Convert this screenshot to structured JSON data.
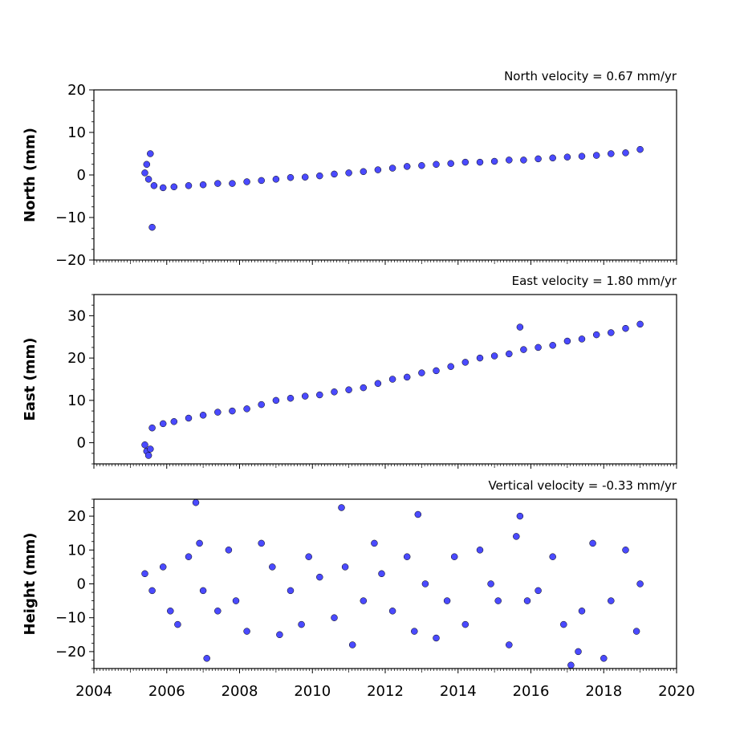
{
  "chart_data": [
    {
      "type": "scatter",
      "ylabel": "North (mm)",
      "annotation": "North velocity = 0.67 mm/yr",
      "xlim": [
        2004,
        2020
      ],
      "ylim": [
        -20,
        20
      ],
      "yticks": [
        -20,
        -10,
        0,
        10,
        20
      ],
      "ytick_labels": [
        "−20",
        "−10",
        "0",
        "10",
        "20"
      ],
      "xtick_labels_shown": false,
      "series": [
        {
          "color": "#4a4aff",
          "x": [
            2005.4,
            2005.45,
            2005.5,
            2005.55,
            2005.6,
            2005.65,
            2005.9,
            2006.2,
            2006.6,
            2007.0,
            2007.4,
            2007.8,
            2008.2,
            2008.6,
            2009.0,
            2009.4,
            2009.8,
            2010.2,
            2010.6,
            2011.0,
            2011.4,
            2011.8,
            2012.2,
            2012.6,
            2013.0,
            2013.4,
            2013.8,
            2014.2,
            2014.6,
            2015.0,
            2015.4,
            2015.8,
            2016.2,
            2016.6,
            2017.0,
            2017.4,
            2017.8,
            2018.2,
            2018.6,
            2019.0
          ],
          "y": [
            0.5,
            2.5,
            -1,
            5,
            -12.3,
            -2.5,
            -3,
            -2.8,
            -2.5,
            -2.3,
            -2,
            -2,
            -1.6,
            -1.3,
            -1,
            -0.6,
            -0.5,
            -0.2,
            0.2,
            0.5,
            0.8,
            1.2,
            1.6,
            2,
            2.2,
            2.5,
            2.7,
            3,
            3,
            3.2,
            3.5,
            3.5,
            3.8,
            4,
            4.2,
            4.4,
            4.6,
            5,
            5.2,
            6
          ]
        }
      ]
    },
    {
      "type": "scatter",
      "ylabel": "East (mm)",
      "annotation": "East velocity = 1.80 mm/yr",
      "xlim": [
        2004,
        2020
      ],
      "ylim": [
        -5,
        35
      ],
      "yticks": [
        0,
        10,
        20,
        30
      ],
      "ytick_labels": [
        "0",
        "10",
        "20",
        "30"
      ],
      "xtick_labels_shown": false,
      "series": [
        {
          "color": "#4a4aff",
          "x": [
            2005.4,
            2005.45,
            2005.5,
            2005.55,
            2005.6,
            2005.9,
            2006.2,
            2006.6,
            2007.0,
            2007.4,
            2007.8,
            2008.2,
            2008.6,
            2009.0,
            2009.4,
            2009.8,
            2010.2,
            2010.6,
            2011.0,
            2011.4,
            2011.8,
            2012.2,
            2012.6,
            2013.0,
            2013.4,
            2013.8,
            2014.2,
            2014.6,
            2015.0,
            2015.4,
            2015.7,
            2015.8,
            2016.2,
            2016.6,
            2017.0,
            2017.4,
            2017.8,
            2018.2,
            2018.6,
            2019.0
          ],
          "y": [
            -0.5,
            -2,
            -3,
            -1.5,
            3.5,
            4.5,
            5,
            5.8,
            6.5,
            7.2,
            7.5,
            8,
            9,
            10,
            10.5,
            11,
            11.3,
            12,
            12.5,
            13,
            14,
            15,
            15.5,
            16.5,
            17,
            18,
            19,
            20,
            20.5,
            21,
            27.3,
            22,
            22.5,
            23,
            24,
            24.5,
            25.5,
            26,
            27,
            28
          ]
        }
      ]
    },
    {
      "type": "scatter",
      "ylabel": "Height (mm)",
      "annotation": "Vertical velocity = -0.33 mm/yr",
      "xlim": [
        2004,
        2020
      ],
      "ylim": [
        -25,
        25
      ],
      "yticks": [
        -20,
        -10,
        0,
        10,
        20
      ],
      "ytick_labels": [
        "−20",
        "−10",
        "0",
        "10",
        "20"
      ],
      "xticks": [
        2004,
        2006,
        2008,
        2010,
        2012,
        2014,
        2016,
        2018,
        2020
      ],
      "xtick_labels": [
        "2004",
        "2006",
        "2008",
        "2010",
        "2012",
        "2014",
        "2016",
        "2018",
        "2020"
      ],
      "xtick_labels_shown": true,
      "series": [
        {
          "color": "#4a4aff",
          "x": [
            2005.4,
            2005.6,
            2005.9,
            2006.1,
            2006.3,
            2006.6,
            2006.8,
            2006.9,
            2007.0,
            2007.1,
            2007.4,
            2007.7,
            2007.9,
            2008.2,
            2008.6,
            2008.9,
            2009.1,
            2009.4,
            2009.7,
            2009.9,
            2010.2,
            2010.6,
            2010.8,
            2010.9,
            2011.1,
            2011.4,
            2011.7,
            2011.9,
            2012.2,
            2012.6,
            2012.8,
            2012.9,
            2013.1,
            2013.4,
            2013.7,
            2013.9,
            2014.2,
            2014.6,
            2014.9,
            2015.1,
            2015.4,
            2015.6,
            2015.7,
            2015.9,
            2016.2,
            2016.6,
            2016.9,
            2017.1,
            2017.3,
            2017.4,
            2017.7,
            2018.0,
            2018.2,
            2018.6,
            2018.9,
            2019.0
          ],
          "y": [
            3,
            -2,
            5,
            -8,
            -12,
            8,
            24,
            12,
            -2,
            -22,
            -8,
            10,
            -5,
            -14,
            12,
            5,
            -15,
            -2,
            -12,
            8,
            2,
            -10,
            22.5,
            5,
            -18,
            -5,
            12,
            3,
            -8,
            8,
            -14,
            20.5,
            0,
            -16,
            -5,
            8,
            -12,
            10,
            0,
            -5,
            -18,
            14,
            20,
            -5,
            -2,
            8,
            -12,
            -24,
            -20,
            -8,
            12,
            -22,
            -5,
            10,
            -14,
            0
          ]
        }
      ]
    }
  ]
}
